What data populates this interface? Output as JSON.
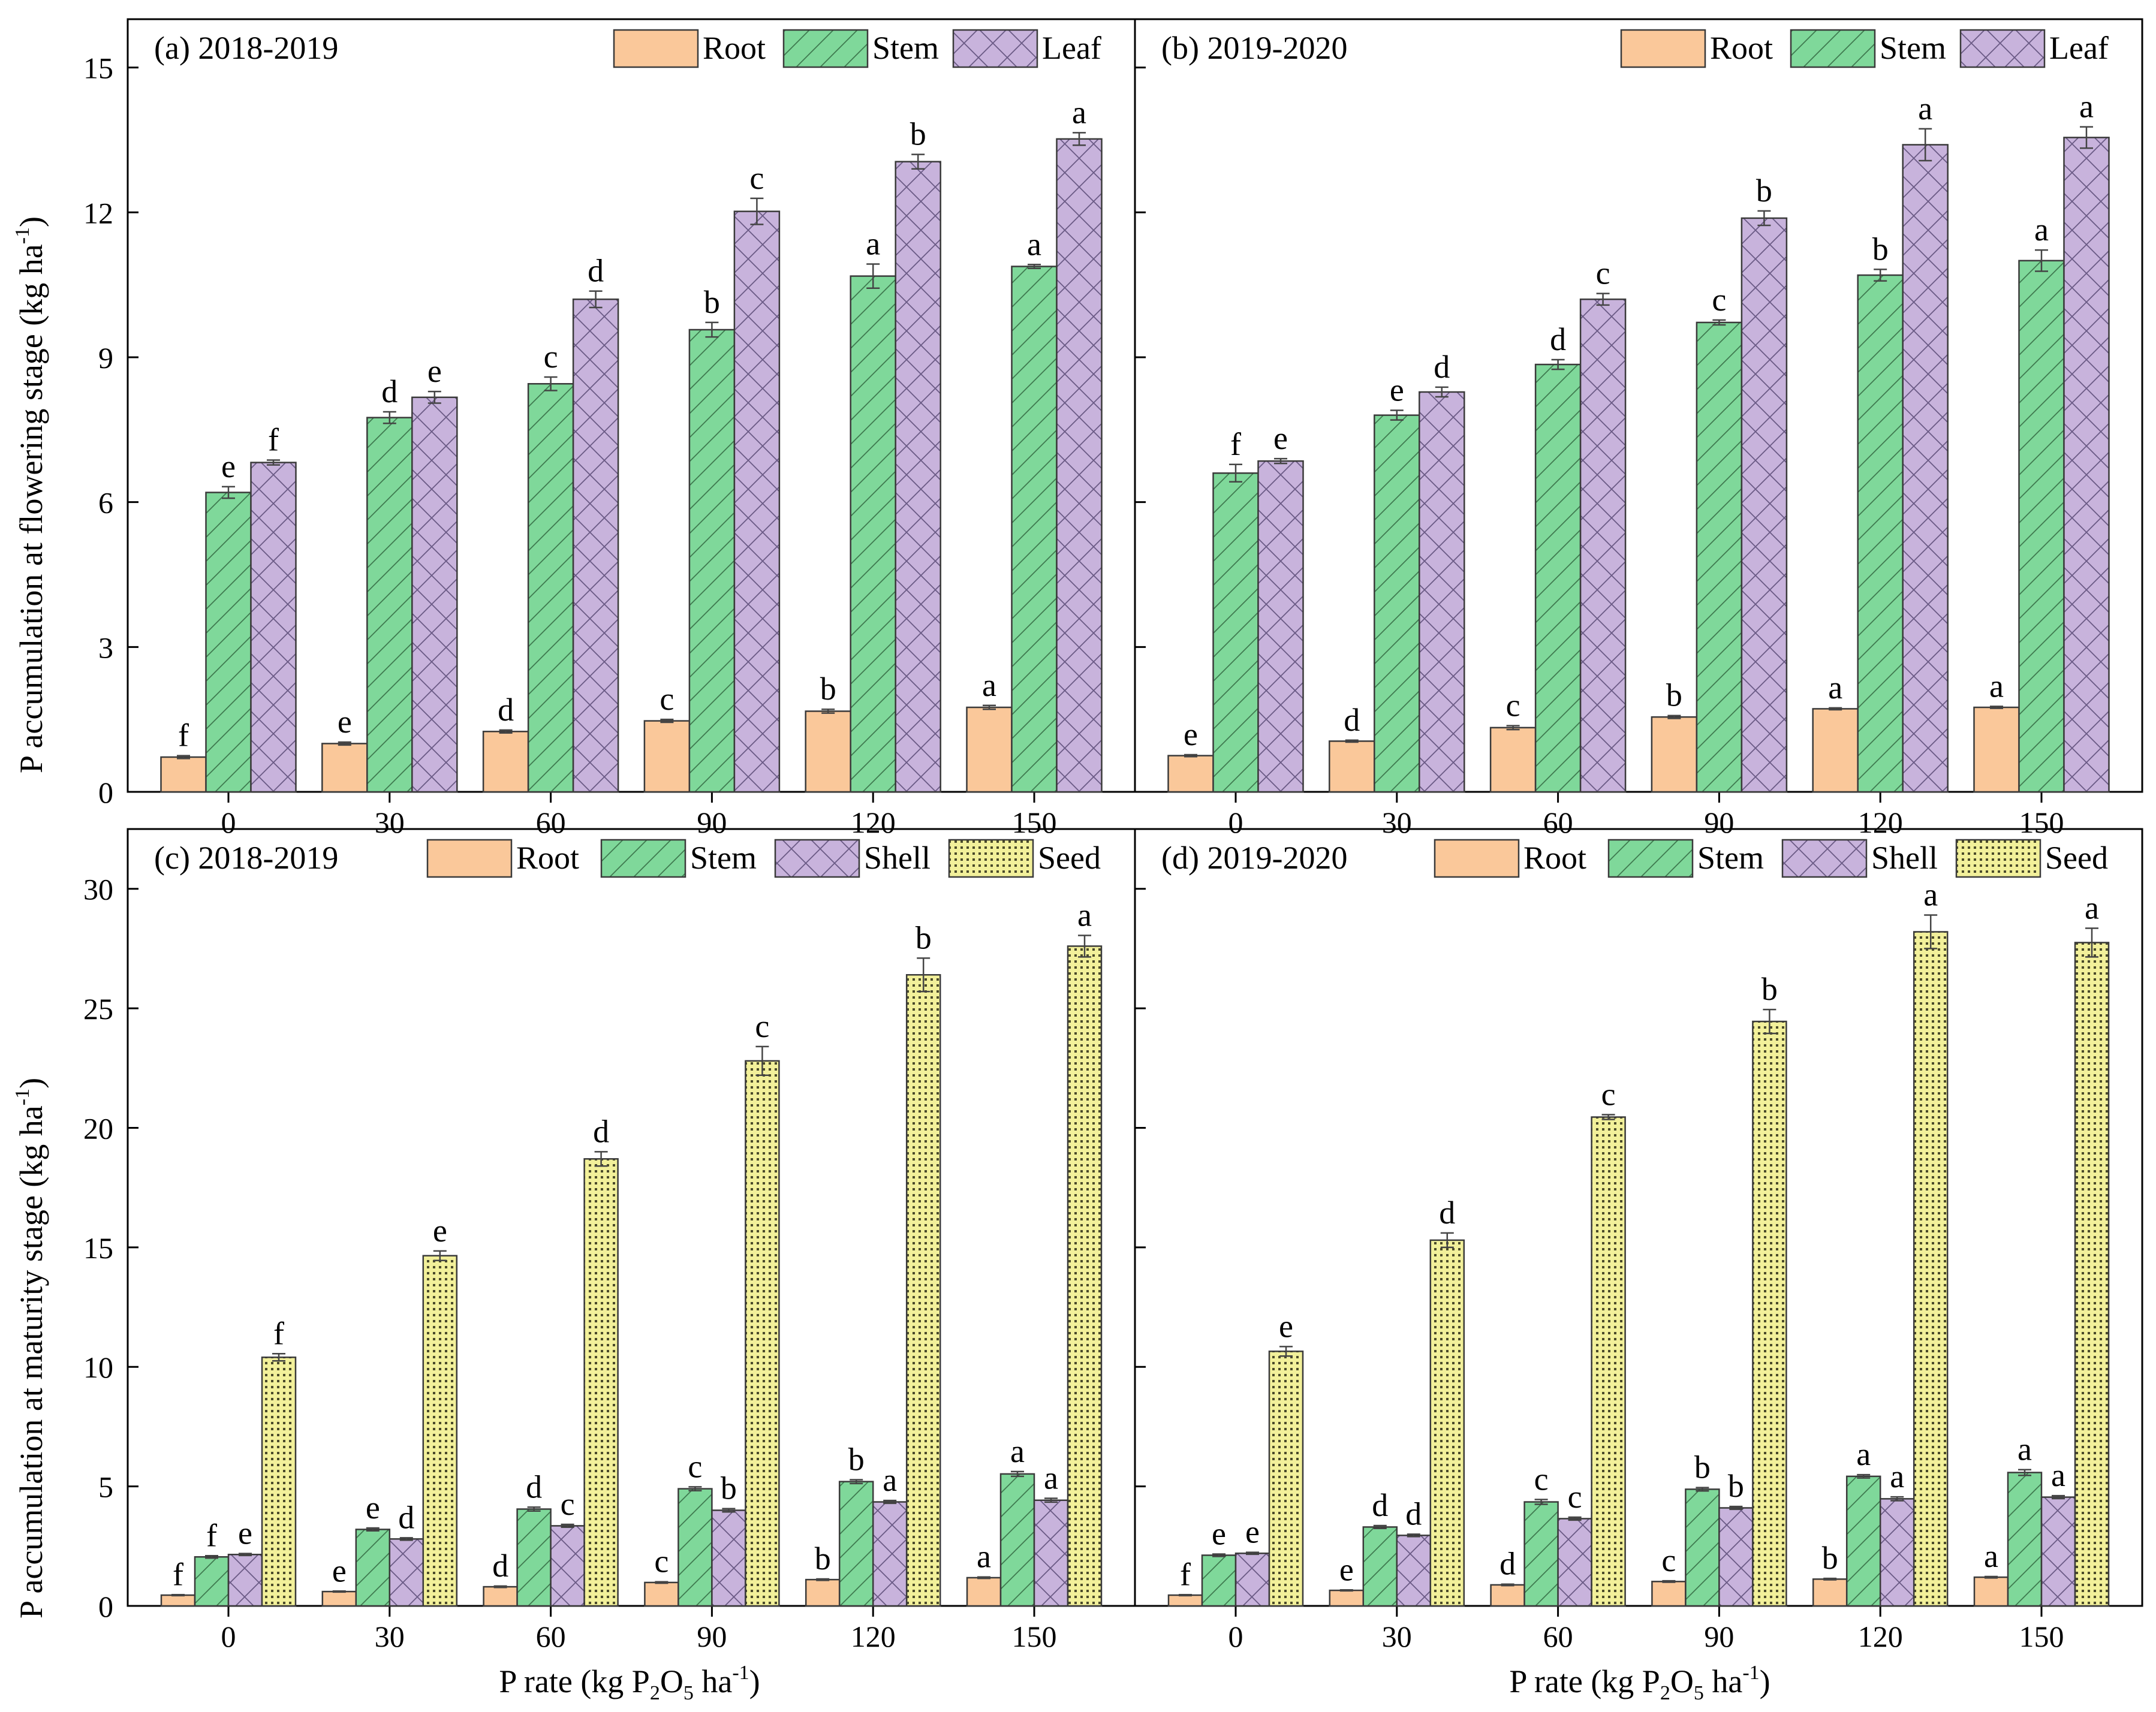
{
  "colors": {
    "root": "#fac89a",
    "stem": "#7fd89a",
    "leaf": "#c8b3dc",
    "shell": "#c8b3dc",
    "seed": "#f2f09a",
    "bar_stroke": "#3a3a3a"
  },
  "x_axis_label": {
    "prefix": "P rate (kg P",
    "sub": "2",
    "mid": "O",
    "sub2": "5",
    "suffix": " ha",
    "sup": "-1",
    "end": ")"
  },
  "y_axis_top": {
    "text": "P accumulation at flowering stage (kg ha",
    "sup": "-1",
    "end": ")"
  },
  "y_axis_bottom": {
    "text": "P accumulation at maturity stage (kg ha",
    "sup": "-1",
    "end": ")"
  },
  "chart_data": [
    {
      "id": "a",
      "type": "bar",
      "title": "(a) 2018-2019",
      "categories": [
        "0",
        "30",
        "60",
        "90",
        "120",
        "150"
      ],
      "ylim": [
        0,
        16
      ],
      "yticks": [
        0,
        3,
        6,
        9,
        12,
        15
      ],
      "series": [
        {
          "name": "Root",
          "key": "root",
          "values": [
            0.72,
            1.0,
            1.25,
            1.47,
            1.67,
            1.75
          ],
          "errors": [
            0.03,
            0.03,
            0.03,
            0.03,
            0.04,
            0.04
          ],
          "letters": [
            "f",
            "e",
            "d",
            "c",
            "b",
            "a"
          ]
        },
        {
          "name": "Stem",
          "key": "stem",
          "values": [
            6.2,
            7.75,
            8.45,
            9.57,
            10.68,
            10.88
          ],
          "errors": [
            0.12,
            0.12,
            0.14,
            0.15,
            0.25,
            0.04
          ],
          "letters": [
            "e",
            "d",
            "c",
            "b",
            "a",
            "a"
          ]
        },
        {
          "name": "Leaf",
          "key": "leaf",
          "values": [
            6.82,
            8.17,
            10.2,
            12.02,
            13.05,
            13.52
          ],
          "errors": [
            0.05,
            0.12,
            0.17,
            0.27,
            0.15,
            0.13
          ],
          "letters": [
            "f",
            "e",
            "d",
            "c",
            "b",
            "a"
          ]
        }
      ]
    },
    {
      "id": "b",
      "type": "bar",
      "title": "(b) 2019-2020",
      "categories": [
        "0",
        "30",
        "60",
        "90",
        "120",
        "150"
      ],
      "ylim": [
        0,
        16
      ],
      "yticks": [
        0,
        3,
        6,
        9,
        12,
        15
      ],
      "series": [
        {
          "name": "Root",
          "key": "root",
          "values": [
            0.75,
            1.05,
            1.33,
            1.55,
            1.72,
            1.75
          ],
          "errors": [
            0.02,
            0.02,
            0.04,
            0.03,
            0.02,
            0.02
          ],
          "letters": [
            "e",
            "d",
            "c",
            "b",
            "a",
            "a"
          ]
        },
        {
          "name": "Stem",
          "key": "stem",
          "values": [
            6.6,
            7.8,
            8.85,
            9.72,
            10.7,
            11.0
          ],
          "errors": [
            0.18,
            0.1,
            0.1,
            0.05,
            0.12,
            0.22
          ],
          "letters": [
            "f",
            "e",
            "d",
            "c",
            "b",
            "a"
          ]
        },
        {
          "name": "Leaf",
          "key": "leaf",
          "values": [
            6.85,
            8.28,
            10.2,
            11.88,
            13.4,
            13.55
          ],
          "errors": [
            0.05,
            0.1,
            0.12,
            0.15,
            0.33,
            0.22
          ],
          "letters": [
            "e",
            "d",
            "c",
            "b",
            "a",
            "a"
          ]
        }
      ]
    },
    {
      "id": "c",
      "type": "bar",
      "title": "(c) 2018-2019",
      "categories": [
        "0",
        "30",
        "60",
        "90",
        "120",
        "150"
      ],
      "ylim": [
        0,
        32.5
      ],
      "yticks": [
        0,
        5,
        10,
        15,
        20,
        25,
        30
      ],
      "series": [
        {
          "name": "Root",
          "key": "root",
          "values": [
            0.45,
            0.6,
            0.8,
            0.98,
            1.1,
            1.18
          ],
          "errors": [
            0.02,
            0.02,
            0.03,
            0.03,
            0.03,
            0.03
          ],
          "letters": [
            "f",
            "e",
            "d",
            "c",
            "b",
            "a"
          ]
        },
        {
          "name": "Stem",
          "key": "stem",
          "values": [
            2.05,
            3.2,
            4.05,
            4.9,
            5.2,
            5.52
          ],
          "errors": [
            0.05,
            0.06,
            0.08,
            0.08,
            0.08,
            0.1
          ],
          "letters": [
            "f",
            "e",
            "d",
            "c",
            "b",
            "a"
          ]
        },
        {
          "name": "Shell",
          "key": "shell",
          "values": [
            2.15,
            2.8,
            3.35,
            4.0,
            4.35,
            4.42
          ],
          "errors": [
            0.04,
            0.05,
            0.06,
            0.07,
            0.06,
            0.08
          ],
          "letters": [
            "e",
            "d",
            "c",
            "b",
            "a",
            "a"
          ]
        },
        {
          "name": "Seed",
          "key": "seed",
          "values": [
            10.4,
            14.65,
            18.7,
            22.8,
            26.4,
            27.6
          ],
          "errors": [
            0.15,
            0.2,
            0.3,
            0.6,
            0.7,
            0.45
          ],
          "letters": [
            "f",
            "e",
            "d",
            "c",
            "b",
            "a"
          ]
        }
      ]
    },
    {
      "id": "d",
      "type": "bar",
      "title": "(d) 2019-2020",
      "categories": [
        "0",
        "30",
        "60",
        "90",
        "120",
        "150"
      ],
      "ylim": [
        0,
        32.5
      ],
      "yticks": [
        0,
        5,
        10,
        15,
        20,
        25,
        30
      ],
      "series": [
        {
          "name": "Root",
          "key": "root",
          "values": [
            0.45,
            0.65,
            0.88,
            1.02,
            1.12,
            1.2
          ],
          "errors": [
            0.02,
            0.02,
            0.03,
            0.03,
            0.03,
            0.03
          ],
          "letters": [
            "f",
            "e",
            "d",
            "c",
            "b",
            "a"
          ]
        },
        {
          "name": "Stem",
          "key": "stem",
          "values": [
            2.12,
            3.3,
            4.35,
            4.88,
            5.42,
            5.58
          ],
          "errors": [
            0.05,
            0.06,
            0.1,
            0.07,
            0.07,
            0.12
          ],
          "letters": [
            "e",
            "d",
            "c",
            "b",
            "a",
            "a"
          ]
        },
        {
          "name": "Shell",
          "key": "shell",
          "values": [
            2.2,
            2.95,
            3.65,
            4.1,
            4.48,
            4.55
          ],
          "errors": [
            0.04,
            0.05,
            0.06,
            0.06,
            0.08,
            0.06
          ],
          "letters": [
            "e",
            "d",
            "c",
            "b",
            "a",
            "a"
          ]
        },
        {
          "name": "Seed",
          "key": "seed",
          "values": [
            10.65,
            15.3,
            20.45,
            24.45,
            28.2,
            27.75
          ],
          "errors": [
            0.2,
            0.3,
            0.1,
            0.5,
            0.7,
            0.6
          ],
          "letters": [
            "e",
            "d",
            "c",
            "b",
            "a",
            "a"
          ]
        }
      ]
    }
  ]
}
